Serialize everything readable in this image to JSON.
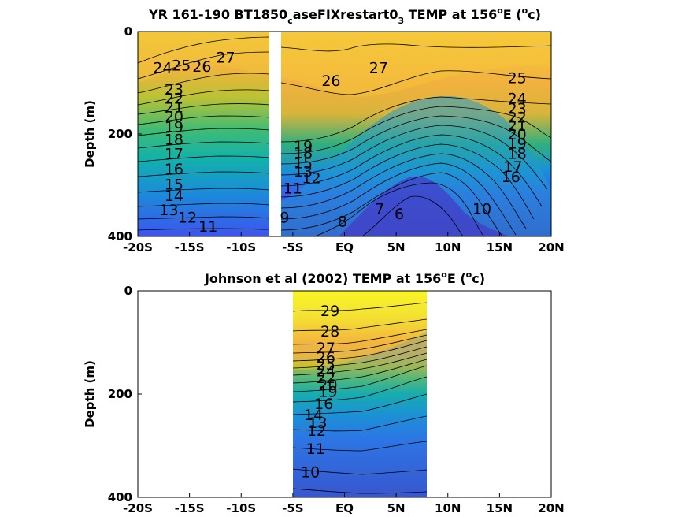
{
  "chart_data": [
    {
      "type": "heatmap",
      "title_parts": [
        "YR 161-190 BT1850",
        "c",
        "aseFIXrestart0",
        "3",
        " TEMP at 156",
        "o",
        "E (",
        "o",
        "c)"
      ],
      "ylabel": "Depth (m)",
      "x_ticks": [
        "-20S",
        "-15S",
        "-10S",
        "-5S",
        "EQ",
        "5N",
        "10N",
        "15N",
        "20N"
      ],
      "x_tick_values": [
        -20,
        -15,
        -10,
        -5,
        0,
        5,
        10,
        15,
        20
      ],
      "y_ticks": [
        "0",
        "200",
        "400"
      ],
      "y_tick_values": [
        0,
        200,
        400
      ],
      "xlim": [
        -20,
        20
      ],
      "ylim": [
        0,
        400
      ],
      "y_reversed": true,
      "grid": false,
      "colormap": "parula",
      "data_gap_x": [
        -7.5,
        -6.8
      ],
      "contour_labels": [
        {
          "text": "27",
          "x": -11.5,
          "y": 50
        },
        {
          "text": "26",
          "x": -13.8,
          "y": 68
        },
        {
          "text": "25",
          "x": -15.8,
          "y": 65
        },
        {
          "text": "24",
          "x": -17.6,
          "y": 70
        },
        {
          "text": "23",
          "x": -16.5,
          "y": 112
        },
        {
          "text": "22",
          "x": -16.5,
          "y": 130
        },
        {
          "text": "21",
          "x": -16.5,
          "y": 147
        },
        {
          "text": "20",
          "x": -16.5,
          "y": 165
        },
        {
          "text": "19",
          "x": -16.5,
          "y": 185
        },
        {
          "text": "18",
          "x": -16.5,
          "y": 210
        },
        {
          "text": "17",
          "x": -16.5,
          "y": 238
        },
        {
          "text": "16",
          "x": -16.5,
          "y": 268
        },
        {
          "text": "15",
          "x": -16.5,
          "y": 298
        },
        {
          "text": "14",
          "x": -16.5,
          "y": 320
        },
        {
          "text": "13",
          "x": -17.0,
          "y": 348
        },
        {
          "text": "12",
          "x": -15.2,
          "y": 362
        },
        {
          "text": "11",
          "x": -13.2,
          "y": 380
        },
        {
          "text": "26",
          "x": -1.3,
          "y": 95
        },
        {
          "text": "27",
          "x": 3.3,
          "y": 70
        },
        {
          "text": "25",
          "x": 16.7,
          "y": 90
        },
        {
          "text": "24",
          "x": 16.7,
          "y": 130
        },
        {
          "text": "23",
          "x": 16.7,
          "y": 150
        },
        {
          "text": "22",
          "x": 16.7,
          "y": 167
        },
        {
          "text": "21",
          "x": 16.7,
          "y": 183
        },
        {
          "text": "20",
          "x": 16.7,
          "y": 200
        },
        {
          "text": "19",
          "x": 16.7,
          "y": 218
        },
        {
          "text": "18",
          "x": 16.7,
          "y": 238
        },
        {
          "text": "17",
          "x": 16.3,
          "y": 263
        },
        {
          "text": "16",
          "x": 16.1,
          "y": 283
        },
        {
          "text": "19",
          "x": -4.0,
          "y": 223
        },
        {
          "text": "18",
          "x": -4.0,
          "y": 236
        },
        {
          "text": "15",
          "x": -4.0,
          "y": 256
        },
        {
          "text": "13",
          "x": -4.0,
          "y": 272
        },
        {
          "text": "12",
          "x": -3.2,
          "y": 285
        },
        {
          "text": "11",
          "x": -5.0,
          "y": 305
        },
        {
          "text": "9",
          "x": -5.8,
          "y": 362
        },
        {
          "text": "8",
          "x": -0.2,
          "y": 370
        },
        {
          "text": "7",
          "x": 3.4,
          "y": 345
        },
        {
          "text": "6",
          "x": 5.3,
          "y": 355
        },
        {
          "text": "10",
          "x": 13.3,
          "y": 345
        }
      ]
    },
    {
      "type": "heatmap",
      "title_parts": [
        "Johnson et al (2002) TEMP at 156",
        "o",
        "E (",
        "o",
        "c)"
      ],
      "ylabel": "Depth (m)",
      "x_ticks": [
        "-20S",
        "-15S",
        "-10S",
        "-5S",
        "EQ",
        "5N",
        "10N",
        "15N",
        "20N"
      ],
      "x_tick_values": [
        -20,
        -15,
        -10,
        -5,
        0,
        5,
        10,
        15,
        20
      ],
      "y_ticks": [
        "0",
        "200",
        "400"
      ],
      "y_tick_values": [
        0,
        200,
        400
      ],
      "xlim": [
        -20,
        20
      ],
      "ylim": [
        0,
        400
      ],
      "y_reversed": true,
      "grid": false,
      "colormap": "parula",
      "data_extent_x": [
        -5,
        8
      ],
      "contour_labels": [
        {
          "text": "29",
          "x": -1.4,
          "y": 38
        },
        {
          "text": "28",
          "x": -1.4,
          "y": 78
        },
        {
          "text": "27",
          "x": -1.8,
          "y": 110
        },
        {
          "text": "26",
          "x": -1.8,
          "y": 128
        },
        {
          "text": "25",
          "x": -1.8,
          "y": 142
        },
        {
          "text": "24",
          "x": -1.8,
          "y": 155
        },
        {
          "text": "22",
          "x": -1.8,
          "y": 168
        },
        {
          "text": "20",
          "x": -1.6,
          "y": 182
        },
        {
          "text": "19",
          "x": -1.6,
          "y": 195
        },
        {
          "text": "16",
          "x": -2.0,
          "y": 218
        },
        {
          "text": "14",
          "x": -3.0,
          "y": 240
        },
        {
          "text": "13",
          "x": -2.6,
          "y": 255
        },
        {
          "text": "12",
          "x": -2.7,
          "y": 270
        },
        {
          "text": "11",
          "x": -2.8,
          "y": 305
        },
        {
          "text": "10",
          "x": -3.3,
          "y": 350
        }
      ]
    }
  ]
}
